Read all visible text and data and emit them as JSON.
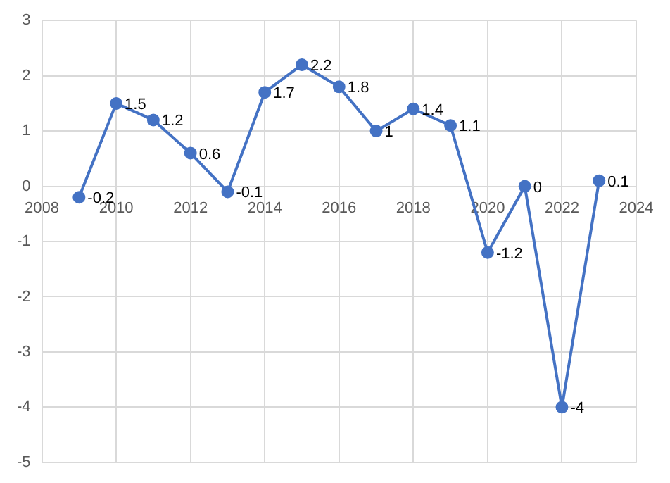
{
  "chart_data": {
    "type": "line",
    "x": [
      2009,
      2010,
      2011,
      2012,
      2013,
      2014,
      2015,
      2016,
      2017,
      2018,
      2019,
      2020,
      2021,
      2022,
      2023
    ],
    "series": [
      {
        "color": "#4472c4",
        "values": [
          -0.2,
          1.5,
          1.2,
          0.6,
          -0.1,
          1.7,
          2.2,
          1.8,
          1,
          1.4,
          1.1,
          -1.2,
          0,
          -4,
          0.1
        ]
      }
    ],
    "xlim": [
      2008,
      2024
    ],
    "xticks": [
      2008,
      2010,
      2012,
      2014,
      2016,
      2018,
      2020,
      2022,
      2024
    ],
    "ylim": [
      -5,
      3
    ],
    "yticks": [
      -5,
      -4,
      -3,
      -2,
      -1,
      0,
      1,
      2,
      3
    ],
    "grid": true,
    "legend": false,
    "marker": "circle",
    "line_style": "solid",
    "data_labels": true
  }
}
